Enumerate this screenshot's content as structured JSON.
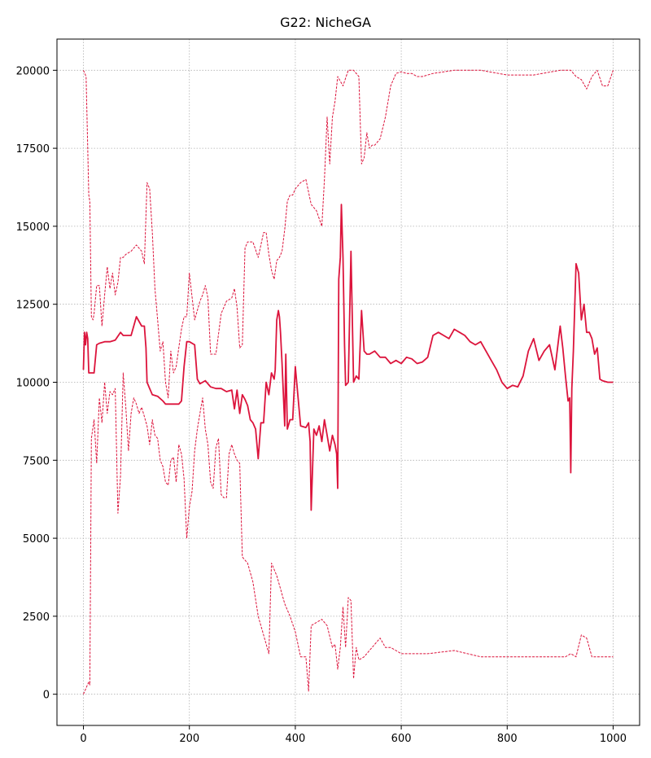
{
  "chart_data": {
    "type": "line",
    "title": "G22: NicheGA",
    "xlabel": "",
    "ylabel": "",
    "xlim": [
      -50,
      1050
    ],
    "ylim": [
      -1000,
      21000
    ],
    "xticks": [
      0,
      200,
      400,
      600,
      800,
      1000
    ],
    "yticks": [
      0,
      2500,
      5000,
      7500,
      10000,
      12500,
      15000,
      17500,
      20000
    ],
    "xtick_labels": [
      "0",
      "200",
      "400",
      "600",
      "800",
      "1000"
    ],
    "ytick_labels": [
      "0",
      "2500",
      "5000",
      "7500",
      "10000",
      "12500",
      "15000",
      "17500",
      "20000"
    ],
    "grid": true,
    "color": "#dc143c",
    "series": [
      {
        "style": "solid",
        "x": [
          0,
          2,
          4,
          6,
          8,
          10,
          12,
          15,
          20,
          25,
          30,
          40,
          50,
          60,
          70,
          75,
          80,
          90,
          100,
          110,
          115,
          118,
          120,
          125,
          130,
          140,
          150,
          155,
          160,
          170,
          180,
          185,
          190,
          195,
          200,
          210,
          215,
          220,
          230,
          240,
          250,
          260,
          270,
          280,
          285,
          290,
          295,
          300,
          305,
          310,
          315,
          320,
          325,
          330,
          335,
          340,
          345,
          350,
          355,
          360,
          362,
          365,
          368,
          370,
          372,
          375,
          380,
          382,
          385,
          390,
          395,
          400,
          410,
          420,
          425,
          428,
          430,
          435,
          440,
          445,
          450,
          455,
          460,
          465,
          470,
          475,
          478,
          480,
          482,
          485,
          487,
          490,
          493,
          495,
          500,
          505,
          510,
          515,
          520,
          525,
          530,
          535,
          540,
          550,
          560,
          570,
          580,
          590,
          600,
          610,
          620,
          630,
          640,
          650,
          660,
          670,
          680,
          690,
          700,
          710,
          720,
          730,
          740,
          750,
          760,
          770,
          780,
          790,
          800,
          810,
          820,
          830,
          840,
          850,
          860,
          870,
          880,
          890,
          900,
          905,
          910,
          915,
          918,
          920,
          922,
          925,
          930,
          935,
          940,
          945,
          950,
          955,
          960,
          965,
          970,
          975,
          980,
          990,
          1000
        ],
        "y": [
          10400,
          11600,
          11200,
          11600,
          11400,
          10300,
          10300,
          10300,
          10300,
          11200,
          11250,
          11300,
          11300,
          11350,
          11600,
          11500,
          11500,
          11500,
          12100,
          11800,
          11800,
          11100,
          10000,
          9800,
          9600,
          9550,
          9400,
          9300,
          9300,
          9300,
          9300,
          9400,
          10500,
          11300,
          11300,
          11200,
          10100,
          9950,
          10050,
          9850,
          9800,
          9800,
          9700,
          9750,
          9150,
          9750,
          9000,
          9600,
          9450,
          9250,
          8800,
          8700,
          8500,
          7550,
          8700,
          8700,
          10000,
          9600,
          10300,
          10100,
          10400,
          12000,
          12300,
          12100,
          11600,
          10600,
          8600,
          10900,
          8500,
          8800,
          8800,
          10500,
          8600,
          8550,
          8700,
          8100,
          5900,
          8500,
          8300,
          8600,
          8100,
          8800,
          8300,
          7800,
          8300,
          8000,
          7700,
          6600,
          13300,
          14000,
          15700,
          14000,
          11200,
          9900,
          10000,
          14200,
          10000,
          10200,
          10100,
          12300,
          11000,
          10900,
          10900,
          11000,
          10800,
          10800,
          10600,
          10700,
          10600,
          10800,
          10750,
          10600,
          10650,
          10800,
          11500,
          11600,
          11500,
          11400,
          11700,
          11600,
          11500,
          11300,
          11200,
          11300,
          11000,
          10700,
          10400,
          10000,
          9800,
          9900,
          9850,
          10200,
          11000,
          11400,
          10700,
          11000,
          11200,
          10400,
          11800,
          11100,
          10200,
          9400,
          9500,
          7100,
          9800,
          11000,
          13800,
          13500,
          12000,
          12500,
          11600,
          11600,
          11400,
          10900,
          11100,
          10100,
          10050,
          10000,
          10000
        ]
      },
      {
        "style": "dashed",
        "x": [
          0,
          5,
          8,
          10,
          12,
          15,
          18,
          20,
          25,
          30,
          35,
          40,
          45,
          50,
          55,
          60,
          65,
          70,
          75,
          80,
          90,
          100,
          110,
          115,
          120,
          125,
          130,
          135,
          140,
          145,
          150,
          155,
          160,
          165,
          170,
          175,
          180,
          185,
          190,
          195,
          200,
          210,
          220,
          225,
          230,
          235,
          240,
          250,
          260,
          270,
          280,
          285,
          290,
          295,
          300,
          305,
          310,
          320,
          330,
          340,
          345,
          350,
          355,
          360,
          365,
          370,
          375,
          380,
          385,
          390,
          395,
          400,
          410,
          420,
          430,
          440,
          450,
          455,
          460,
          465,
          470,
          475,
          480,
          490,
          500,
          510,
          520,
          525,
          530,
          535,
          540,
          545,
          550,
          560,
          570,
          580,
          590,
          600,
          610,
          620,
          630,
          640,
          650,
          660,
          700,
          750,
          800,
          850,
          900,
          920,
          930,
          940,
          950,
          960,
          970,
          980,
          990,
          1000
        ],
        "y": [
          20000,
          19800,
          17500,
          16000,
          15800,
          12100,
          12000,
          12200,
          13100,
          13100,
          11800,
          12800,
          13700,
          13000,
          13500,
          12800,
          13200,
          14000,
          14000,
          14100,
          14200,
          14400,
          14200,
          13800,
          16400,
          16200,
          14800,
          13000,
          12000,
          11000,
          11300,
          10000,
          9500,
          11000,
          10300,
          10500,
          11100,
          11700,
          12100,
          12100,
          13500,
          12000,
          12600,
          12800,
          13100,
          12700,
          10900,
          10900,
          12200,
          12600,
          12700,
          13000,
          12400,
          11100,
          11200,
          14300,
          14500,
          14500,
          14000,
          14800,
          14800,
          14100,
          13600,
          13300,
          13900,
          14000,
          14200,
          14900,
          15800,
          16000,
          16000,
          16200,
          16400,
          16500,
          15700,
          15500,
          15000,
          16500,
          18500,
          17000,
          18500,
          19000,
          19800,
          19500,
          20000,
          20000,
          19800,
          17000,
          17200,
          18000,
          17500,
          17600,
          17600,
          17800,
          18500,
          19500,
          19900,
          19950,
          19900,
          19900,
          19800,
          19800,
          19850,
          19900,
          20000,
          20000,
          19850,
          19850,
          20000,
          20000,
          19800,
          19700,
          19400,
          19800,
          20000,
          19500,
          19500,
          20000
        ]
      },
      {
        "style": "dashed",
        "x": [
          0,
          5,
          10,
          12,
          15,
          20,
          25,
          30,
          35,
          40,
          45,
          50,
          55,
          60,
          65,
          70,
          75,
          80,
          85,
          90,
          95,
          100,
          105,
          110,
          115,
          120,
          125,
          130,
          135,
          140,
          145,
          150,
          155,
          160,
          165,
          170,
          175,
          180,
          185,
          190,
          195,
          200,
          205,
          210,
          215,
          220,
          225,
          230,
          235,
          240,
          245,
          250,
          255,
          260,
          265,
          270,
          275,
          280,
          285,
          290,
          295,
          300,
          310,
          320,
          330,
          340,
          350,
          355,
          360,
          365,
          370,
          380,
          390,
          400,
          410,
          420,
          425,
          430,
          440,
          450,
          460,
          470,
          475,
          480,
          485,
          490,
          495,
          500,
          505,
          510,
          515,
          520,
          530,
          540,
          550,
          560,
          570,
          580,
          590,
          600,
          620,
          650,
          700,
          750,
          800,
          850,
          900,
          910,
          920,
          930,
          940,
          950,
          960,
          970,
          980,
          990,
          1000
        ],
        "y": [
          0,
          200,
          400,
          300,
          8200,
          8800,
          7400,
          9500,
          8700,
          10000,
          9000,
          9700,
          9600,
          9800,
          5800,
          7000,
          10300,
          9200,
          7800,
          9000,
          9500,
          9300,
          9000,
          9200,
          8900,
          8600,
          8000,
          8800,
          8300,
          8200,
          7500,
          7300,
          6800,
          6700,
          7500,
          7600,
          6800,
          8000,
          7700,
          6900,
          5000,
          6000,
          6500,
          7800,
          8500,
          9000,
          9500,
          8500,
          8000,
          6800,
          6600,
          7900,
          8200,
          6400,
          6300,
          6300,
          7700,
          8000,
          7700,
          7500,
          7400,
          4400,
          4200,
          3600,
          2500,
          1900,
          1300,
          4200,
          4000,
          3800,
          3500,
          2900,
          2500,
          2000,
          1200,
          1200,
          100,
          2200,
          2300,
          2400,
          2200,
          1500,
          1600,
          800,
          1500,
          2800,
          1500,
          3100,
          3000,
          500,
          1500,
          1100,
          1200,
          1400,
          1600,
          1800,
          1500,
          1500,
          1400,
          1300,
          1300,
          1300,
          1400,
          1200,
          1200,
          1200,
          1200,
          1200,
          1300,
          1200,
          1900,
          1800,
          1200,
          1200,
          1200,
          1200,
          1200
        ]
      }
    ]
  }
}
